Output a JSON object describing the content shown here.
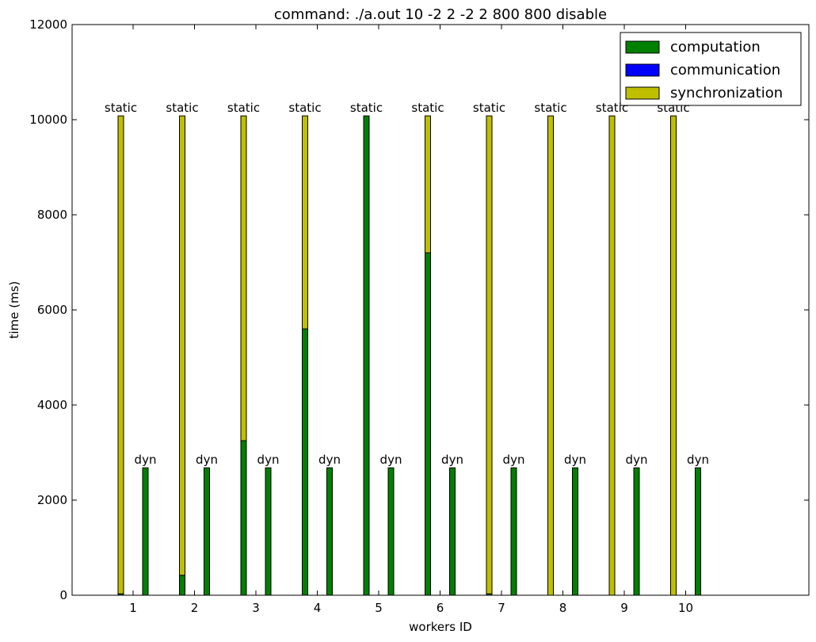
{
  "chart_data": {
    "type": "bar",
    "title": "command: ./a.out 10 -2 2 -2 2 800 800 disable",
    "xlabel": "workers ID",
    "ylabel": "time (ms)",
    "ylim": [
      0,
      12000
    ],
    "yticks": [
      0,
      2000,
      4000,
      6000,
      8000,
      10000,
      12000
    ],
    "categories": [
      "1",
      "2",
      "3",
      "4",
      "5",
      "6",
      "7",
      "8",
      "9",
      "10"
    ],
    "grid": false,
    "legend_position": "top-right",
    "series": [
      {
        "name": "computation",
        "color": "#008000"
      },
      {
        "name": "communication",
        "color": "#0000ff"
      },
      {
        "name": "synchronization",
        "color": "#bfbf00"
      }
    ],
    "groups": [
      {
        "label": "static",
        "computation": [
          30,
          420,
          3250,
          5600,
          10080,
          7200,
          30,
          0,
          0,
          0
        ],
        "communication": [
          0,
          0,
          0,
          0,
          0,
          0,
          0,
          0,
          0,
          0
        ],
        "synchronization": [
          10050,
          9660,
          6830,
          4480,
          0,
          2880,
          10050,
          10080,
          10080,
          10080
        ]
      },
      {
        "label": "dyn",
        "computation": [
          2680,
          2680,
          2680,
          2680,
          2680,
          2680,
          2680,
          2680,
          2680,
          2680
        ],
        "communication": [
          0,
          0,
          0,
          0,
          0,
          0,
          0,
          0,
          0,
          0
        ],
        "synchronization": [
          0,
          0,
          0,
          0,
          0,
          0,
          0,
          0,
          0,
          0
        ]
      }
    ]
  }
}
